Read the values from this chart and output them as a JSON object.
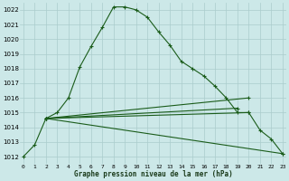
{
  "background_color": "#cce8e8",
  "grid_color": "#aacccc",
  "line_color": "#1a5c1a",
  "title": "Graphe pression niveau de la mer (hPa)",
  "ylim": [
    1011.5,
    1022.5
  ],
  "xlim": [
    -0.3,
    23.3
  ],
  "yticks": [
    1012,
    1013,
    1014,
    1015,
    1016,
    1017,
    1018,
    1019,
    1020,
    1021,
    1022
  ],
  "xticks": [
    0,
    1,
    2,
    3,
    4,
    5,
    6,
    7,
    8,
    9,
    10,
    11,
    12,
    13,
    14,
    15,
    16,
    17,
    18,
    19,
    20,
    21,
    22,
    23
  ],
  "series1_x": [
    0,
    1,
    2,
    3,
    4,
    5,
    6,
    7,
    8,
    9,
    10,
    11,
    12,
    13,
    14,
    15,
    16,
    17,
    18,
    19,
    20,
    21,
    22,
    23
  ],
  "series1_y": [
    1012.0,
    1012.8,
    1014.6,
    1015.0,
    1016.0,
    1018.1,
    1019.5,
    1020.8,
    1022.2,
    1022.2,
    1022.0,
    1021.5,
    1020.5,
    1019.6,
    1018.5,
    1018.0,
    1017.5,
    1016.8,
    1016.0,
    1015.0,
    1015.0,
    1013.8,
    1013.2,
    1012.2
  ],
  "line2_x": [
    2,
    20
  ],
  "line2_y": [
    1014.6,
    1016.0
  ],
  "line3_x": [
    2,
    19
  ],
  "line3_y": [
    1014.6,
    1015.3
  ],
  "line4_x": [
    2,
    20
  ],
  "line4_y": [
    1014.6,
    1015.0
  ],
  "line5_x": [
    2,
    23
  ],
  "line5_y": [
    1014.6,
    1012.2
  ],
  "marker_extra": [
    [
      20,
      1016.0
    ],
    [
      19,
      1015.3
    ],
    [
      20,
      1015.0
    ],
    [
      23,
      1012.2
    ]
  ]
}
